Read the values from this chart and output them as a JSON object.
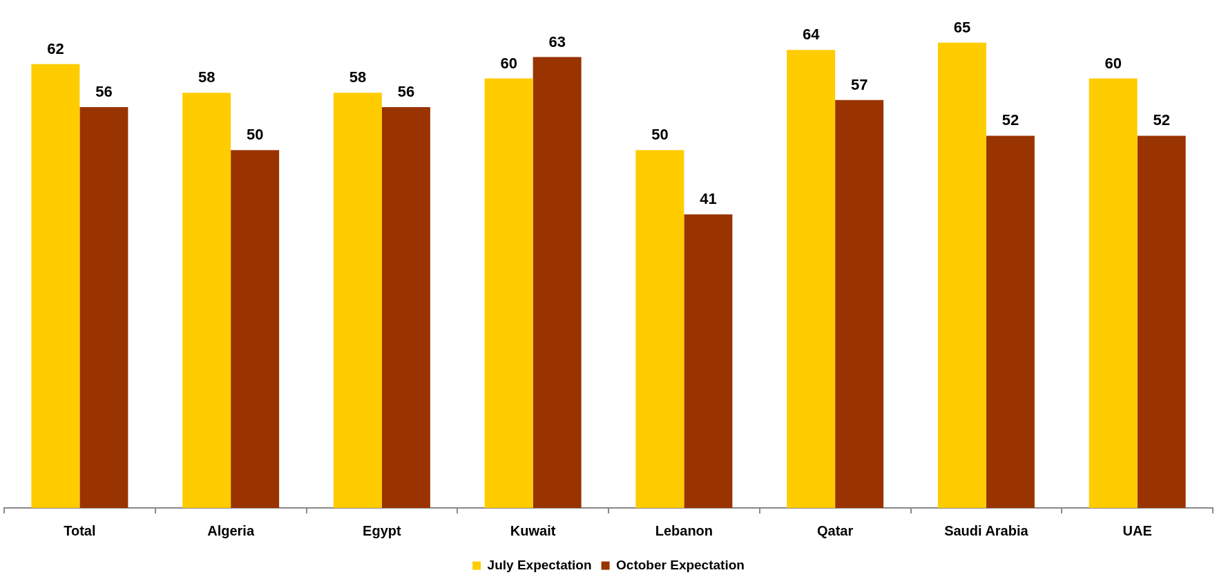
{
  "chart_data": {
    "type": "bar",
    "categories": [
      "Total",
      "Algeria",
      "Egypt",
      "Kuwait",
      "Lebanon",
      "Qatar",
      "Saudi Arabia",
      "UAE"
    ],
    "series": [
      {
        "name": "July Expectation",
        "color": "#ffcc00",
        "values": [
          62,
          58,
          58,
          60,
          50,
          64,
          65,
          60
        ]
      },
      {
        "name": "October Expectation",
        "color": "#993300",
        "values": [
          56,
          50,
          56,
          63,
          41,
          57,
          52,
          52
        ]
      }
    ],
    "data_labels": true,
    "legend": "bottom",
    "grid": false
  }
}
